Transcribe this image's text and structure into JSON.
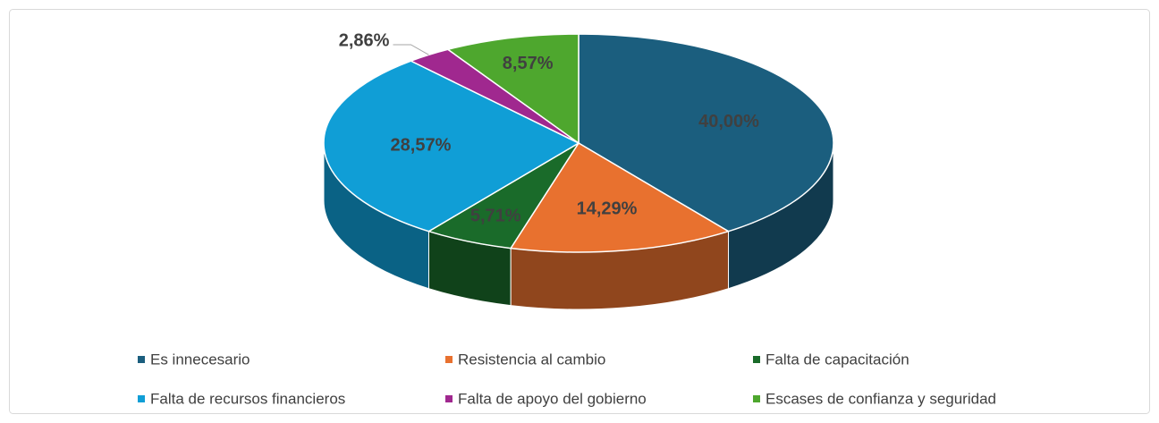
{
  "chart_data": {
    "type": "pie3d",
    "categories": [
      "Es innecesario",
      "Resistencia al cambio",
      "Falta de capacitación",
      "Falta de recursos financieros",
      "Falta de apoyo del gobierno",
      "Escases de confianza y seguridad"
    ],
    "values": [
      40,
      14.29,
      5.71,
      28.57,
      2.86,
      8.57
    ],
    "value_labels": [
      "40,00%",
      "14,29%",
      "5,71%",
      "28,57%",
      "2,86%",
      "8,57%"
    ],
    "colors": [
      "#1b5e7e",
      "#e8712f",
      "#1a6b2a",
      "#109ed6",
      "#a0288f",
      "#4ea72e"
    ],
    "legend": "bottom"
  }
}
